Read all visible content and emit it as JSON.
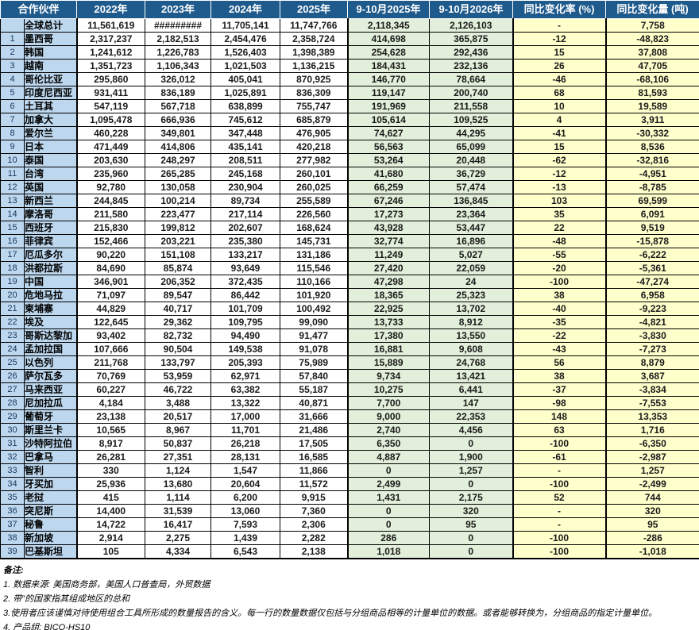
{
  "colors": {
    "header_bg": "#1E5A8C",
    "header_text": "#FFFFFF",
    "label_column_bg": "#BDD7EE",
    "year_column_bg": "#FFFFFF",
    "period_column_bg": "#E2EFDA",
    "yoy_column_bg": "#FFFFCC",
    "border": "#000000"
  },
  "table": {
    "header": {
      "partner": "合作伙伴",
      "columns": [
        "2022年",
        "2023年",
        "2024年",
        "2025年",
        "9-10月2025年",
        "9-10月2026年",
        "同比变化率 (%)",
        "同比变化量 (吨)"
      ]
    },
    "rows": [
      {
        "num": "",
        "name": "全球总计",
        "values": [
          "11,561,619",
          "#########",
          "11,705,141",
          "11,747,766",
          "2,118,345",
          "2,126,103",
          "-",
          "7,758"
        ]
      },
      {
        "num": "1",
        "name": "墨西哥",
        "values": [
          "2,317,237",
          "2,182,513",
          "2,454,476",
          "2,358,724",
          "414,698",
          "365,875",
          "-12",
          "-48,823"
        ]
      },
      {
        "num": "2",
        "name": "韩国",
        "values": [
          "1,241,612",
          "1,226,783",
          "1,526,403",
          "1,398,389",
          "254,628",
          "292,436",
          "15",
          "37,808"
        ]
      },
      {
        "num": "3",
        "name": "越南",
        "values": [
          "1,351,723",
          "1,106,343",
          "1,021,503",
          "1,136,215",
          "184,431",
          "232,136",
          "26",
          "47,705"
        ]
      },
      {
        "num": "4",
        "name": "哥伦比亚",
        "values": [
          "295,860",
          "326,012",
          "405,041",
          "870,925",
          "146,770",
          "78,664",
          "-46",
          "-68,106"
        ]
      },
      {
        "num": "5",
        "name": "印度尼西亚",
        "values": [
          "931,411",
          "836,189",
          "1,025,891",
          "836,309",
          "119,147",
          "200,740",
          "68",
          "81,593"
        ]
      },
      {
        "num": "6",
        "name": "土耳其",
        "values": [
          "547,119",
          "567,718",
          "638,899",
          "755,747",
          "191,969",
          "211,558",
          "10",
          "19,589"
        ]
      },
      {
        "num": "7",
        "name": "加拿大",
        "values": [
          "1,095,478",
          "666,936",
          "745,612",
          "685,879",
          "105,614",
          "109,525",
          "4",
          "3,911"
        ]
      },
      {
        "num": "8",
        "name": "爱尔兰",
        "values": [
          "460,228",
          "349,801",
          "347,448",
          "476,905",
          "74,627",
          "44,295",
          "-41",
          "-30,332"
        ]
      },
      {
        "num": "9",
        "name": "日本",
        "values": [
          "471,449",
          "414,806",
          "435,141",
          "420,218",
          "56,563",
          "65,099",
          "15",
          "8,536"
        ]
      },
      {
        "num": "10",
        "name": "泰国",
        "values": [
          "203,630",
          "248,297",
          "208,511",
          "277,982",
          "53,264",
          "20,448",
          "-62",
          "-32,816"
        ]
      },
      {
        "num": "11",
        "name": "台湾",
        "values": [
          "235,960",
          "265,285",
          "245,168",
          "260,101",
          "41,680",
          "36,729",
          "-12",
          "-4,951"
        ]
      },
      {
        "num": "12",
        "name": "英国",
        "values": [
          "92,780",
          "130,058",
          "230,904",
          "260,025",
          "66,259",
          "57,474",
          "-13",
          "-8,785"
        ]
      },
      {
        "num": "13",
        "name": "新西兰",
        "values": [
          "244,845",
          "100,214",
          "89,734",
          "255,589",
          "67,246",
          "136,845",
          "103",
          "69,599"
        ]
      },
      {
        "num": "14",
        "name": "摩洛哥",
        "values": [
          "211,580",
          "223,477",
          "217,114",
          "226,560",
          "17,273",
          "23,364",
          "35",
          "6,091"
        ]
      },
      {
        "num": "15",
        "name": "西班牙",
        "values": [
          "215,830",
          "199,812",
          "202,607",
          "168,624",
          "43,928",
          "53,447",
          "22",
          "9,519"
        ]
      },
      {
        "num": "16",
        "name": "菲律宾",
        "values": [
          "152,466",
          "203,221",
          "235,380",
          "145,731",
          "32,774",
          "16,896",
          "-48",
          "-15,878"
        ]
      },
      {
        "num": "17",
        "name": "厄瓜多尔",
        "values": [
          "90,220",
          "151,108",
          "133,217",
          "131,186",
          "11,249",
          "5,027",
          "-55",
          "-6,222"
        ]
      },
      {
        "num": "18",
        "name": "洪都拉斯",
        "values": [
          "84,690",
          "85,874",
          "93,649",
          "115,546",
          "27,420",
          "22,059",
          "-20",
          "-5,361"
        ]
      },
      {
        "num": "19",
        "name": "中国",
        "values": [
          "346,901",
          "206,352",
          "372,435",
          "110,166",
          "47,298",
          "24",
          "-100",
          "-47,274"
        ]
      },
      {
        "num": "20",
        "name": "危地马拉",
        "values": [
          "71,097",
          "89,547",
          "86,442",
          "101,920",
          "18,365",
          "25,323",
          "38",
          "6,958"
        ]
      },
      {
        "num": "21",
        "name": "柬埔寨",
        "values": [
          "44,829",
          "40,717",
          "101,709",
          "100,492",
          "22,925",
          "13,702",
          "-40",
          "-9,223"
        ]
      },
      {
        "num": "22",
        "name": "埃及",
        "values": [
          "122,645",
          "29,362",
          "109,795",
          "99,090",
          "13,733",
          "8,912",
          "-35",
          "-4,821"
        ]
      },
      {
        "num": "23",
        "name": "哥斯达黎加",
        "values": [
          "93,402",
          "82,732",
          "94,490",
          "91,477",
          "17,380",
          "13,550",
          "-22",
          "-3,830"
        ]
      },
      {
        "num": "24",
        "name": "孟加拉国",
        "values": [
          "107,666",
          "90,504",
          "149,538",
          "91,078",
          "16,881",
          "9,608",
          "-43",
          "-7,273"
        ]
      },
      {
        "num": "25",
        "name": "以色列",
        "values": [
          "211,768",
          "133,797",
          "205,393",
          "75,989",
          "15,889",
          "24,768",
          "56",
          "8,879"
        ]
      },
      {
        "num": "26",
        "name": "萨尔瓦多",
        "values": [
          "70,769",
          "53,959",
          "62,971",
          "57,840",
          "9,734",
          "13,421",
          "38",
          "3,687"
        ]
      },
      {
        "num": "27",
        "name": "马来西亚",
        "values": [
          "60,227",
          "46,722",
          "63,382",
          "55,187",
          "10,275",
          "6,441",
          "-37",
          "-3,834"
        ]
      },
      {
        "num": "28",
        "name": "尼加拉瓜",
        "values": [
          "4,184",
          "3,488",
          "13,322",
          "40,871",
          "7,700",
          "147",
          "-98",
          "-7,553"
        ]
      },
      {
        "num": "29",
        "name": "葡萄牙",
        "values": [
          "23,138",
          "20,517",
          "17,000",
          "31,666",
          "9,000",
          "22,353",
          "148",
          "13,353"
        ]
      },
      {
        "num": "30",
        "name": "斯里兰卡",
        "values": [
          "10,565",
          "8,967",
          "11,701",
          "21,486",
          "2,740",
          "4,456",
          "63",
          "1,716"
        ]
      },
      {
        "num": "31",
        "name": "沙特阿拉伯",
        "values": [
          "8,917",
          "50,837",
          "26,218",
          "17,505",
          "6,350",
          "0",
          "-100",
          "-6,350"
        ]
      },
      {
        "num": "32",
        "name": "巴拿马",
        "values": [
          "26,281",
          "27,351",
          "28,131",
          "16,585",
          "4,887",
          "1,900",
          "-61",
          "-2,987"
        ]
      },
      {
        "num": "33",
        "name": "智利",
        "values": [
          "330",
          "1,124",
          "1,547",
          "11,866",
          "0",
          "1,257",
          "-",
          "1,257"
        ]
      },
      {
        "num": "34",
        "name": "牙买加",
        "values": [
          "25,936",
          "13,680",
          "20,604",
          "11,572",
          "2,499",
          "0",
          "-100",
          "-2,499"
        ]
      },
      {
        "num": "35",
        "name": "老挝",
        "values": [
          "415",
          "1,114",
          "6,200",
          "9,915",
          "1,431",
          "2,175",
          "52",
          "744"
        ]
      },
      {
        "num": "36",
        "name": "突尼斯",
        "values": [
          "14,400",
          "31,539",
          "13,060",
          "7,360",
          "0",
          "320",
          "-",
          "320"
        ]
      },
      {
        "num": "37",
        "name": "秘鲁",
        "values": [
          "14,722",
          "16,417",
          "7,593",
          "2,306",
          "0",
          "95",
          "-",
          "95"
        ]
      },
      {
        "num": "38",
        "name": "新加坡",
        "values": [
          "2,914",
          "2,275",
          "1,439",
          "2,282",
          "286",
          "0",
          "-100",
          "-286"
        ]
      },
      {
        "num": "39",
        "name": "巴基斯坦",
        "values": [
          "105",
          "4,334",
          "6,543",
          "2,138",
          "1,018",
          "0",
          "-100",
          "-1,018"
        ]
      }
    ]
  },
  "notes": {
    "title": "备注:",
    "items": [
      "1. 数据来源: 美国商务部，美国人口普查局，外贸数据",
      "2. 带\"的国家指其组成地区的总和",
      "3.使用者应该谨慎对待使用组合工具所形成的数量报告的含义。每一行的数量数据仅包括与分组商品相等的计量单位的数据。或者能够转换为，分组商品的指定计量单位。",
      "4. 产品组: BICO-HS10"
    ]
  }
}
